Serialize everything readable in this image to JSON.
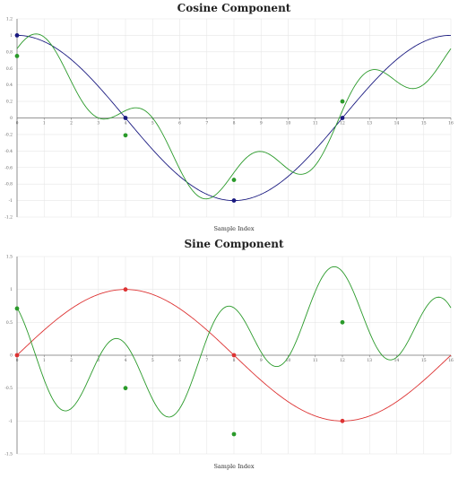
{
  "colors": {
    "reference": "#1a1a80",
    "composite": "#2a9a2a",
    "sine": "#dd3333",
    "grid": "#e6e6e6",
    "axis": "#777777"
  },
  "chart_data": [
    {
      "type": "line",
      "title": "Cosine Component",
      "xlabel": "Sample Index",
      "ylabel": "",
      "xlim": [
        0,
        16
      ],
      "ylim": [
        -1.2,
        1.2
      ],
      "xticks": [
        "0",
        "1",
        "2",
        "3",
        "4",
        "5",
        "6",
        "7",
        "8",
        "9",
        "10",
        "11",
        "12",
        "13",
        "14",
        "15",
        "16"
      ],
      "yticks": [
        "1.2",
        "1",
        "0.8",
        "0.6",
        "0.4",
        "0.2",
        "0",
        "-0.2",
        "-0.4",
        "-0.6",
        "-0.8",
        "-1",
        "-1.2"
      ],
      "grid": true,
      "series": [
        {
          "key": "reference",
          "curve": "cos",
          "markers": [
            [
              0,
              1
            ],
            [
              4,
              0
            ],
            [
              8,
              -1
            ],
            [
              12,
              0
            ]
          ]
        },
        {
          "key": "composite",
          "curve": "cos_composite",
          "markers": [
            [
              0,
              0.75
            ],
            [
              4,
              -0.21
            ],
            [
              8,
              -0.75
            ],
            [
              12,
              0.2
            ]
          ]
        }
      ]
    },
    {
      "type": "line",
      "title": "Sine Component",
      "xlabel": "Sample Index",
      "ylabel": "",
      "xlim": [
        0,
        16
      ],
      "ylim": [
        -1.5,
        1.5
      ],
      "xticks": [
        "0",
        "1",
        "2",
        "3",
        "4",
        "5",
        "6",
        "7",
        "8",
        "9",
        "10",
        "11",
        "12",
        "13",
        "14",
        "15",
        "16"
      ],
      "yticks": [
        "1.5",
        "1",
        "0.5",
        "0",
        "-0.5",
        "-1",
        "-1.5"
      ],
      "grid": true,
      "series": [
        {
          "key": "sine",
          "curve": "sin",
          "markers": [
            [
              0,
              0
            ],
            [
              4,
              1
            ],
            [
              8,
              0
            ],
            [
              12,
              -1
            ]
          ]
        },
        {
          "key": "composite",
          "curve": "sin_composite",
          "markers": [
            [
              0,
              0.71
            ],
            [
              4,
              -0.5
            ],
            [
              8,
              -1.2
            ],
            [
              12,
              0.5
            ]
          ]
        }
      ]
    }
  ]
}
